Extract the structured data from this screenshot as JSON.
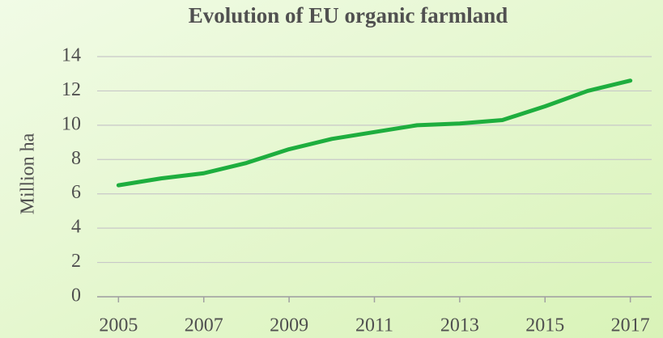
{
  "chart_data": {
    "type": "line",
    "title": "Evolution of EU organic farmland",
    "y_label": "Million ha",
    "x": [
      2005,
      2006,
      2007,
      2008,
      2009,
      2010,
      2011,
      2012,
      2013,
      2014,
      2015,
      2016,
      2017
    ],
    "series": [
      {
        "name": "EU organic farmland",
        "color": "#1eae3e",
        "values": [
          6.5,
          6.9,
          7.2,
          7.8,
          8.6,
          9.2,
          9.6,
          10.0,
          10.1,
          10.3,
          11.1,
          12.0,
          12.6
        ]
      }
    ],
    "xlim": [
      2004.5,
      2017.5
    ],
    "xticks": [
      2005,
      2007,
      2009,
      2011,
      2013,
      2015,
      2017
    ],
    "ylim": [
      0,
      14
    ],
    "yticks": [
      0,
      2,
      4,
      6,
      8,
      10,
      12,
      14
    ],
    "grid": true,
    "legend": false
  }
}
